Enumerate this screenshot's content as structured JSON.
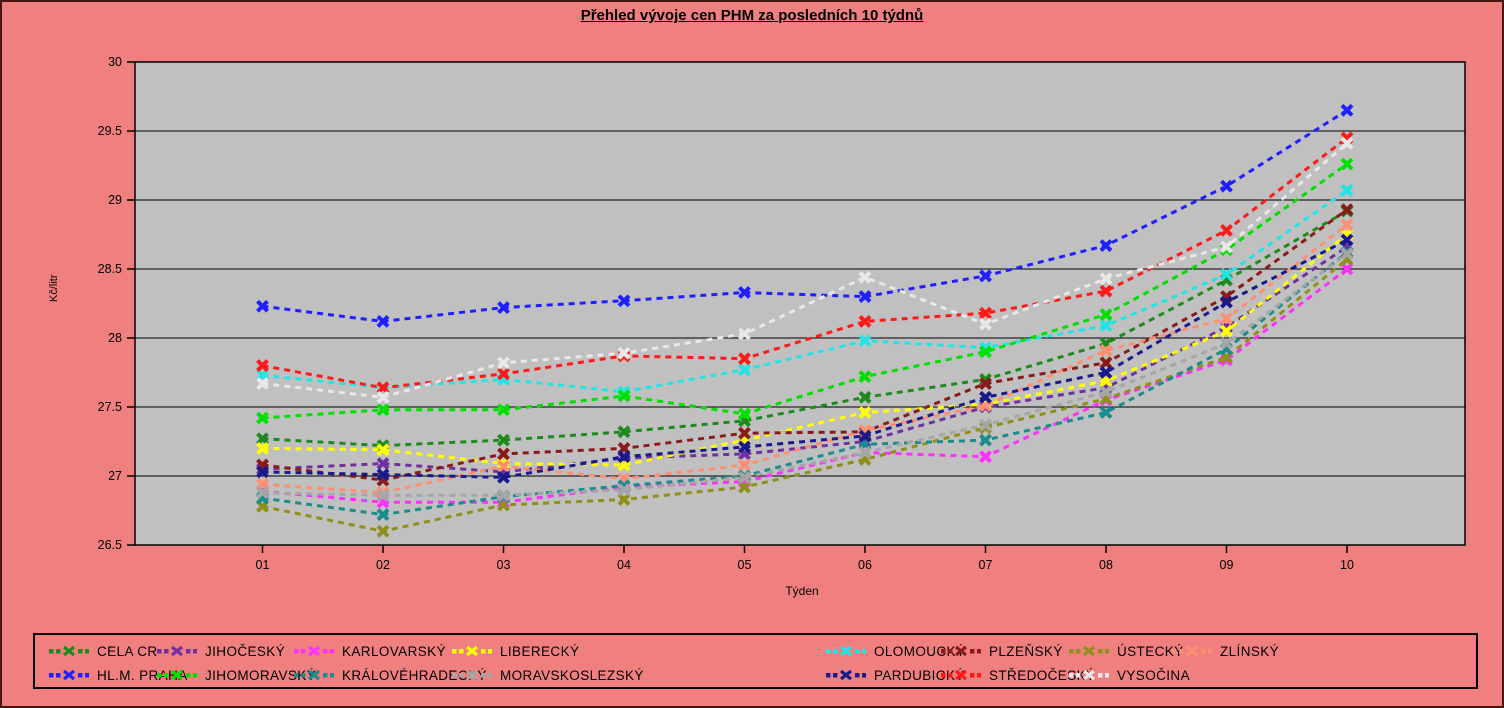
{
  "title": "Přehled vývoje cen PHM za posledních 10 týdnů",
  "colors": {
    "background": "#F08080",
    "plot_background": "#C0C0C0",
    "gridline": "#000000",
    "axis_text": "#000000"
  },
  "y_axis": {
    "label": "Kč/litr",
    "ticks": [
      "30",
      "29.5",
      "29",
      "28.5",
      "28",
      "27.5",
      "27",
      "26.5"
    ]
  },
  "x_axis": {
    "label": "Týden",
    "ticks": [
      "01",
      "02",
      "03",
      "04",
      "05",
      "06",
      "07",
      "08",
      "09",
      "10"
    ]
  },
  "chart_data": {
    "type": "line",
    "title": "Přehled vývoje cen PHM za posledních 10 týdnů",
    "xlabel": "Týden",
    "ylabel": "Kč/litr",
    "ylim": [
      26.5,
      30
    ],
    "ytick_step": 0.5,
    "grid": "horizontal",
    "line_style": "dashed",
    "marker": "x",
    "legend_position": "bottom",
    "x": [
      "01",
      "02",
      "03",
      "04",
      "05",
      "06",
      "07",
      "08",
      "09",
      "10"
    ],
    "series": [
      {
        "name": "CELA CR",
        "color": "#1E8A1E",
        "values": [
          27.27,
          27.22,
          27.26,
          27.32,
          27.4,
          27.57,
          27.7,
          27.96,
          28.42,
          28.92
        ]
      },
      {
        "name": "JIHOČESKÝ",
        "color": "#7030A0",
        "values": [
          27.05,
          27.09,
          27.03,
          27.13,
          27.16,
          27.25,
          27.5,
          27.64,
          28.08,
          28.66
        ]
      },
      {
        "name": "KARLOVARSKÝ",
        "color": "#FF30FF",
        "values": [
          26.89,
          26.81,
          26.81,
          26.92,
          26.96,
          27.17,
          27.14,
          27.55,
          27.84,
          28.5
        ]
      },
      {
        "name": "LIBERECKÝ",
        "color": "#FFFF00",
        "values": [
          27.2,
          27.19,
          27.09,
          27.08,
          27.26,
          27.46,
          27.52,
          27.69,
          28.05,
          28.75
        ]
      },
      {
        "name": "OLOMOUCKÝ",
        "color": "#22E4E4",
        "values": [
          27.73,
          27.64,
          27.7,
          27.61,
          27.77,
          27.98,
          27.93,
          28.09,
          28.46,
          29.07
        ]
      },
      {
        "name": "PLZEŇSKÝ",
        "color": "#8B1A1A",
        "values": [
          27.08,
          26.97,
          27.16,
          27.2,
          27.31,
          27.32,
          27.67,
          27.82,
          28.3,
          28.93
        ]
      },
      {
        "name": "ÚSTECKÝ",
        "color": "#8F8F1A",
        "values": [
          26.78,
          26.6,
          26.79,
          26.83,
          26.92,
          27.12,
          27.35,
          27.56,
          27.86,
          28.57
        ]
      },
      {
        "name": "ZLÍNSKÝ",
        "color": "#FF8F73",
        "values": [
          26.94,
          26.88,
          27.07,
          26.98,
          27.08,
          27.33,
          27.51,
          27.91,
          28.14,
          28.82
        ]
      },
      {
        "name": "HL.M. PRAHA",
        "color": "#1F1FFF",
        "values": [
          28.23,
          28.12,
          28.22,
          28.27,
          28.33,
          28.3,
          28.45,
          28.67,
          29.1,
          29.65
        ]
      },
      {
        "name": "JIHOMORAVSKÝ",
        "color": "#00E000",
        "values": [
          27.42,
          27.48,
          27.48,
          27.58,
          27.45,
          27.72,
          27.9,
          28.17,
          28.64,
          29.26
        ]
      },
      {
        "name": "KRÁLOVÉHRADECKÝ",
        "color": "#1A8C8C",
        "values": [
          26.84,
          26.72,
          26.85,
          26.93,
          27.0,
          27.23,
          27.26,
          27.46,
          27.92,
          28.62
        ]
      },
      {
        "name": "MORAVSKOSLEZSKÝ",
        "color": "#A6A6A6",
        "values": [
          26.88,
          26.86,
          26.86,
          26.9,
          26.99,
          27.17,
          27.37,
          27.61,
          27.96,
          28.61
        ]
      },
      {
        "name": "PARDUBICKÝ",
        "color": "#1A1A8C",
        "values": [
          27.03,
          27.01,
          26.99,
          27.14,
          27.21,
          27.29,
          27.57,
          27.75,
          28.26,
          28.71
        ]
      },
      {
        "name": "STŘEDOČESKÝ",
        "color": "#FF1A1A",
        "values": [
          27.8,
          27.64,
          27.74,
          27.87,
          27.85,
          28.12,
          28.18,
          28.34,
          28.78,
          29.45
        ]
      },
      {
        "name": "VYSOČINA",
        "color": "#E8E8E8",
        "values": [
          27.67,
          27.57,
          27.82,
          27.89,
          28.03,
          28.44,
          28.1,
          28.43,
          28.66,
          29.41
        ]
      }
    ]
  },
  "legend": {
    "rows": [
      [
        "CELA CR",
        "JIHOČESKÝ",
        "KARLOVARSKÝ",
        "LIBERECKÝ",
        "OLOMOUCKÝ",
        "PLZEŇSKÝ",
        "ÚSTECKÝ",
        "ZLÍNSKÝ"
      ],
      [
        "HL.M. PRAHA",
        "JIHOMORAVSKÝ",
        "KRÁLOVÉHRADECKÝ",
        "MORAVSKOSLEZSKÝ",
        "PARDUBICKÝ",
        "STŘEDOČESKÝ",
        "VYSOČINA"
      ]
    ]
  }
}
